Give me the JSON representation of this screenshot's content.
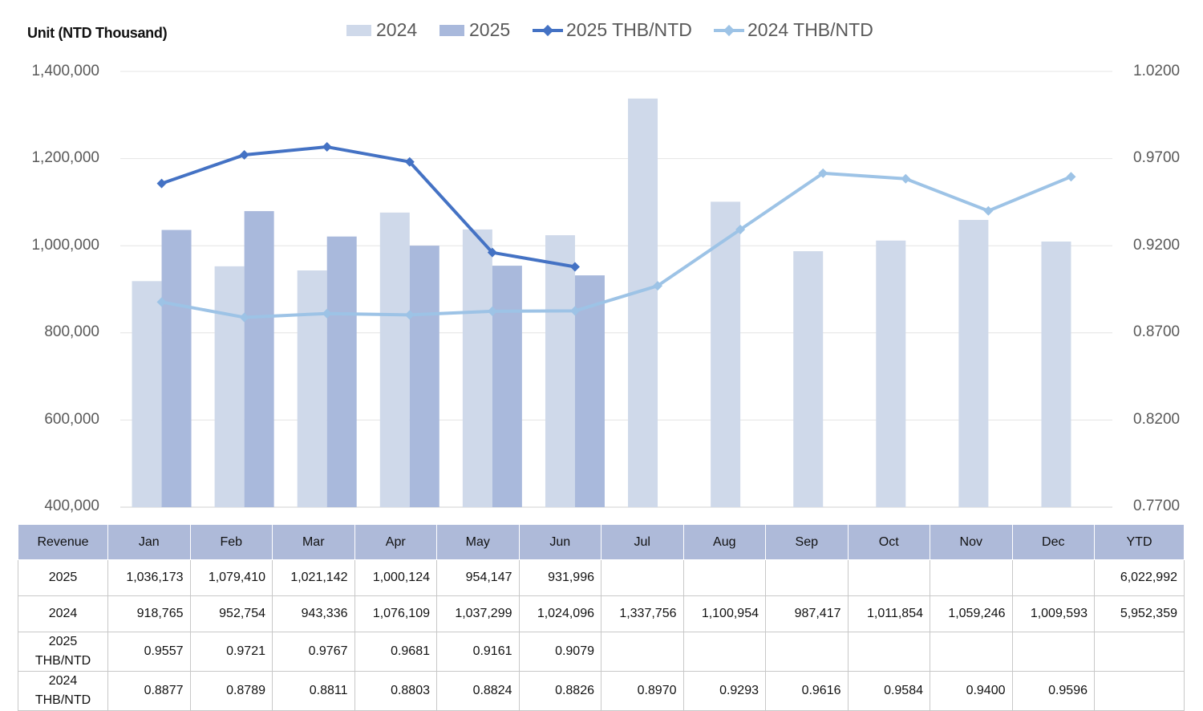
{
  "unit_label": "Unit (NTD  Thousand)",
  "legend": [
    {
      "label": "2024",
      "kind": "bar",
      "color": "#cfd9ea"
    },
    {
      "label": "2025",
      "kind": "bar",
      "color": "#a9b9dc"
    },
    {
      "label": "2025 THB/NTD",
      "kind": "line",
      "color": "#4472c4"
    },
    {
      "label": "2024 THB/NTD",
      "kind": "line",
      "color": "#9dc3e6"
    }
  ],
  "left_axis_ticks": [
    "1,400,000",
    "1,200,000",
    "1,000,000",
    "800,000",
    "600,000",
    "400,000"
  ],
  "right_axis_ticks": [
    "1.0200",
    "0.9700",
    "0.9200",
    "0.8700",
    "0.8200",
    "0.7700"
  ],
  "chart_data": {
    "type": "bar",
    "categories": [
      "Jan",
      "Feb",
      "Mar",
      "Apr",
      "May",
      "Jun",
      "Jul",
      "Aug",
      "Sep",
      "Oct",
      "Nov",
      "Dec"
    ],
    "ylim": [
      400000,
      1400000
    ],
    "y2lim": [
      0.77,
      1.02
    ],
    "grid": true,
    "legend_position": "top-center",
    "series": [
      {
        "name": "2024",
        "type": "bar",
        "axis": "left",
        "color": "#cfd9ea",
        "values": [
          918765,
          952754,
          943336,
          1076109,
          1037299,
          1024096,
          1337756,
          1100954,
          987417,
          1011854,
          1059246,
          1009593
        ]
      },
      {
        "name": "2025",
        "type": "bar",
        "axis": "left",
        "color": "#a9b9dc",
        "values": [
          1036173,
          1079410,
          1021142,
          1000124,
          954147,
          931996,
          null,
          null,
          null,
          null,
          null,
          null
        ]
      },
      {
        "name": "2025 THB/NTD",
        "type": "line",
        "axis": "right",
        "color": "#4472c4",
        "values": [
          0.9557,
          0.9721,
          0.9767,
          0.9681,
          0.9161,
          0.9079,
          null,
          null,
          null,
          null,
          null,
          null
        ]
      },
      {
        "name": "2024 THB/NTD",
        "type": "line",
        "axis": "right",
        "color": "#9dc3e6",
        "values": [
          0.8877,
          0.8789,
          0.8811,
          0.8803,
          0.8824,
          0.8826,
          0.897,
          0.9293,
          0.9616,
          0.9584,
          0.94,
          0.9596
        ]
      }
    ]
  },
  "table": {
    "header": [
      "Revenue",
      "Jan",
      "Feb",
      "Mar",
      "Apr",
      "May",
      "Jun",
      "Jul",
      "Aug",
      "Sep",
      "Oct",
      "Nov",
      "Dec",
      "YTD"
    ],
    "rows": [
      {
        "label": "2025",
        "cells": [
          "1,036,173",
          "1,079,410",
          "1,021,142",
          "1,000,124",
          "954,147",
          "931,996",
          "",
          "",
          "",
          "",
          "",
          "",
          "6,022,992"
        ]
      },
      {
        "label": "2024",
        "cells": [
          "918,765",
          "952,754",
          "943,336",
          "1,076,109",
          "1,037,299",
          "1,024,096",
          "1,337,756",
          "1,100,954",
          "987,417",
          "1,011,854",
          "1,059,246",
          "1,009,593",
          "5,952,359"
        ]
      },
      {
        "label_line1": "2025",
        "label_line2": "THB/NTD",
        "cells": [
          "0.9557",
          "0.9721",
          "0.9767",
          "0.9681",
          "0.9161",
          "0.9079",
          "",
          "",
          "",
          "",
          "",
          "",
          ""
        ]
      },
      {
        "label_line1": "2024",
        "label_line2": "THB/NTD",
        "cells": [
          "0.8877",
          "0.8789",
          "0.8811",
          "0.8803",
          "0.8824",
          "0.8826",
          "0.8970",
          "0.9293",
          "0.9616",
          "0.9584",
          "0.9400",
          "0.9596",
          ""
        ]
      }
    ]
  }
}
